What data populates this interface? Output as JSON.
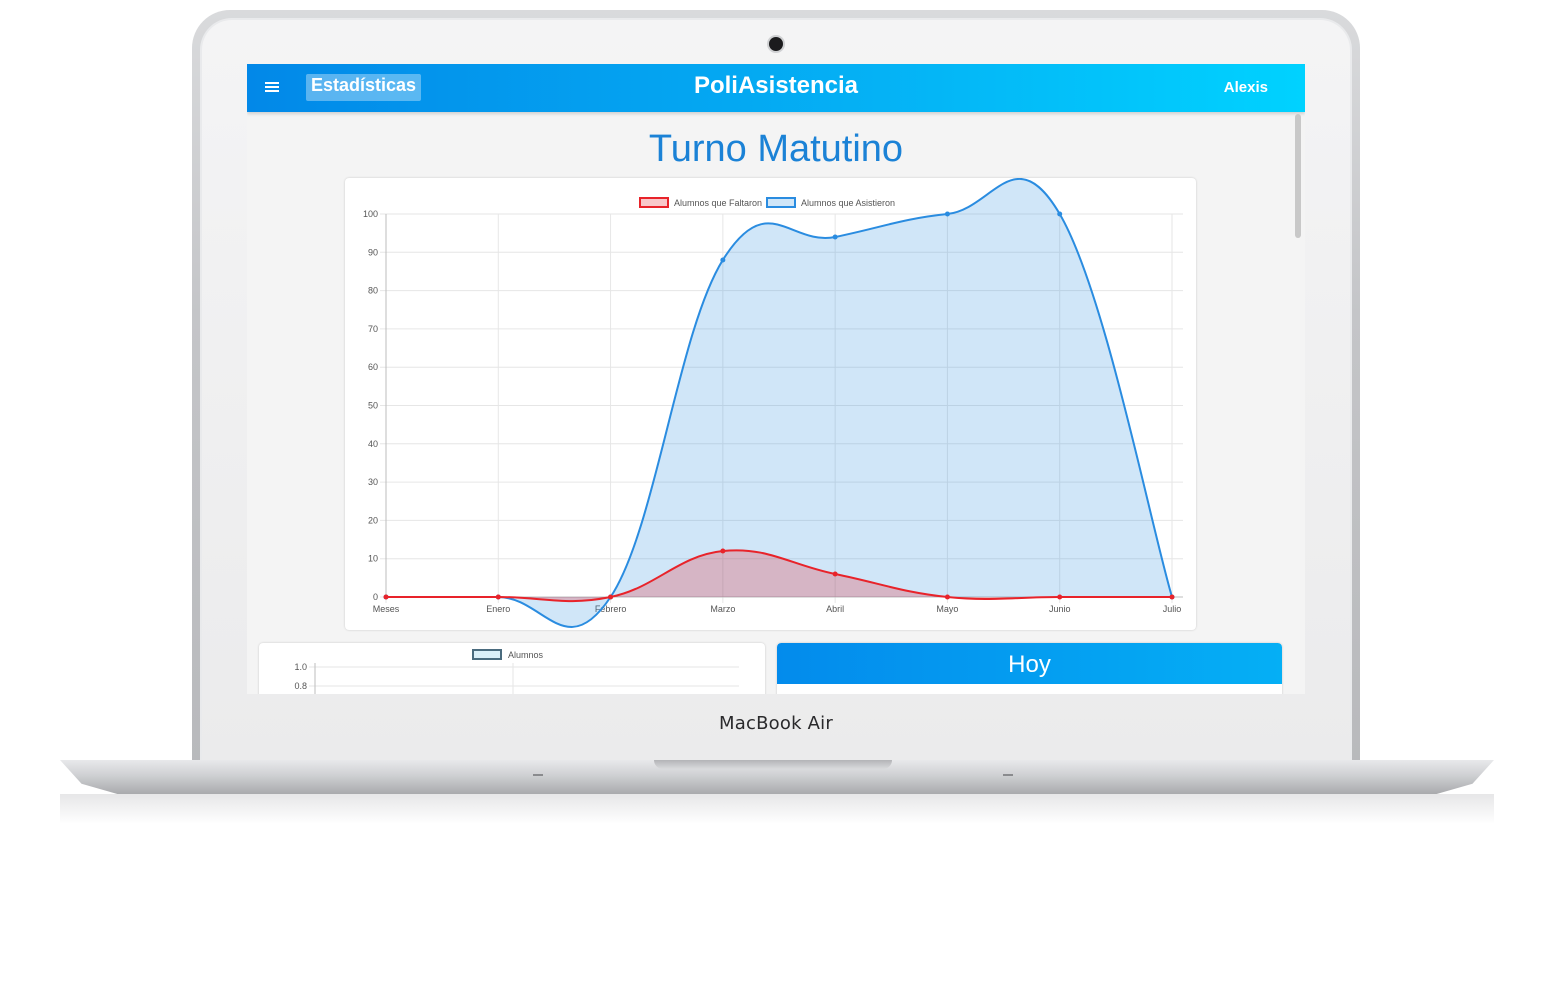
{
  "device": {
    "brand_label": "MacBook Air"
  },
  "navbar": {
    "section_tab": "Estadísticas",
    "title_prefix": "Poli",
    "title_main": "Asistencia",
    "user": "Alexis"
  },
  "page": {
    "title": "Turno Matutino"
  },
  "colors": {
    "accent": "#1b82d6",
    "faltaron": "#e8232a",
    "asistieron": "#2a8ce0",
    "nav_start": "#0288e8",
    "nav_end": "#00d2ff"
  },
  "chart_data": [
    {
      "type": "area",
      "categories": [
        "Meses",
        "Enero",
        "Febrero",
        "Marzo",
        "Abril",
        "Mayo",
        "Junio",
        "Julio"
      ],
      "series": [
        {
          "name": "Alumnos que Faltaron",
          "values": [
            0,
            0,
            0,
            12,
            6,
            0,
            0,
            0
          ]
        },
        {
          "name": "Alumnos que Asistieron",
          "values": [
            0,
            0,
            0,
            88,
            94,
            100,
            100,
            0
          ]
        }
      ],
      "ylim": [
        0,
        100
      ],
      "yticks": [
        0,
        10,
        20,
        30,
        40,
        50,
        60,
        70,
        80,
        90,
        100
      ],
      "grid": true,
      "legend": "top-center"
    },
    {
      "type": "bar",
      "series": [
        {
          "name": "Alumnos",
          "values": []
        }
      ],
      "yticks_visible": [
        "1.0",
        "0.8"
      ],
      "legend": "top-center"
    }
  ],
  "cards": {
    "today_title": "Hoy"
  }
}
